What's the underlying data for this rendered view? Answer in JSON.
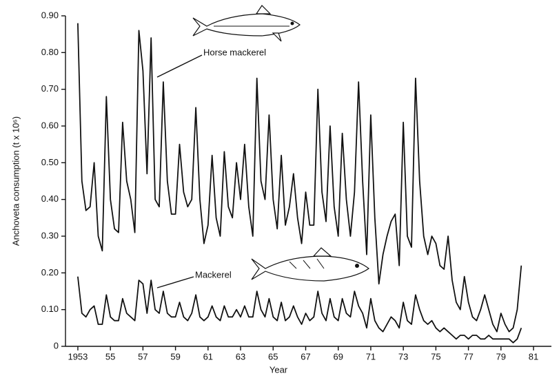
{
  "chart_data": {
    "type": "line",
    "xlabel": "Year",
    "ylabel": "Anchoveta consumption (t x 10⁶)",
    "annotations": [
      "Horse mackerel",
      "Mackerel"
    ],
    "x": [
      1953,
      1953.25,
      1953.5,
      1953.75,
      1954,
      1954.25,
      1954.5,
      1954.75,
      1955,
      1955.25,
      1955.5,
      1955.75,
      1956,
      1956.25,
      1956.5,
      1956.75,
      1957,
      1957.25,
      1957.5,
      1957.75,
      1958,
      1958.25,
      1958.5,
      1958.75,
      1959,
      1959.25,
      1959.5,
      1959.75,
      1960,
      1960.25,
      1960.5,
      1960.75,
      1961,
      1961.25,
      1961.5,
      1961.75,
      1962,
      1962.25,
      1962.5,
      1962.75,
      1963,
      1963.25,
      1963.5,
      1963.75,
      1964,
      1964.25,
      1964.5,
      1964.75,
      1965,
      1965.25,
      1965.5,
      1965.75,
      1966,
      1966.25,
      1966.5,
      1966.75,
      1967,
      1967.25,
      1967.5,
      1967.75,
      1968,
      1968.25,
      1968.5,
      1968.75,
      1969,
      1969.25,
      1969.5,
      1969.75,
      1970,
      1970.25,
      1970.5,
      1970.75,
      1971,
      1971.25,
      1971.5,
      1971.75,
      1972,
      1972.25,
      1972.5,
      1972.75,
      1973,
      1973.25,
      1973.5,
      1973.75,
      1974,
      1974.25,
      1974.5,
      1974.75,
      1975,
      1975.25,
      1975.5,
      1975.75,
      1976,
      1976.25,
      1976.5,
      1976.75,
      1977,
      1977.25,
      1977.5,
      1977.75,
      1978,
      1978.25,
      1978.5,
      1978.75,
      1979,
      1979.25,
      1979.5,
      1979.75,
      1980,
      1980.25
    ],
    "series": [
      {
        "name": "Horse mackerel",
        "color": "#111111",
        "values": [
          0.88,
          0.45,
          0.37,
          0.38,
          0.5,
          0.3,
          0.26,
          0.68,
          0.4,
          0.32,
          0.31,
          0.61,
          0.45,
          0.4,
          0.31,
          0.86,
          0.75,
          0.47,
          0.84,
          0.4,
          0.38,
          0.72,
          0.45,
          0.36,
          0.36,
          0.55,
          0.42,
          0.38,
          0.4,
          0.65,
          0.4,
          0.28,
          0.33,
          0.52,
          0.35,
          0.3,
          0.53,
          0.38,
          0.35,
          0.5,
          0.4,
          0.55,
          0.38,
          0.3,
          0.73,
          0.45,
          0.4,
          0.63,
          0.4,
          0.32,
          0.52,
          0.33,
          0.38,
          0.47,
          0.35,
          0.28,
          0.42,
          0.33,
          0.33,
          0.7,
          0.42,
          0.34,
          0.6,
          0.38,
          0.3,
          0.58,
          0.4,
          0.3,
          0.42,
          0.72,
          0.45,
          0.25,
          0.63,
          0.35,
          0.17,
          0.25,
          0.3,
          0.34,
          0.36,
          0.22,
          0.61,
          0.3,
          0.27,
          0.73,
          0.45,
          0.3,
          0.25,
          0.3,
          0.28,
          0.22,
          0.21,
          0.3,
          0.18,
          0.12,
          0.1,
          0.19,
          0.12,
          0.08,
          0.07,
          0.1,
          0.14,
          0.1,
          0.06,
          0.04,
          0.09,
          0.06,
          0.04,
          0.05,
          0.1,
          0.22
        ]
      },
      {
        "name": "Mackerel",
        "color": "#111111",
        "values": [
          0.19,
          0.09,
          0.08,
          0.1,
          0.11,
          0.06,
          0.06,
          0.14,
          0.08,
          0.07,
          0.07,
          0.13,
          0.09,
          0.08,
          0.07,
          0.18,
          0.17,
          0.09,
          0.18,
          0.1,
          0.09,
          0.15,
          0.09,
          0.08,
          0.08,
          0.12,
          0.08,
          0.07,
          0.09,
          0.14,
          0.08,
          0.07,
          0.08,
          0.11,
          0.08,
          0.07,
          0.11,
          0.08,
          0.08,
          0.1,
          0.08,
          0.11,
          0.08,
          0.08,
          0.15,
          0.1,
          0.08,
          0.13,
          0.08,
          0.07,
          0.12,
          0.07,
          0.08,
          0.11,
          0.08,
          0.06,
          0.09,
          0.07,
          0.08,
          0.15,
          0.09,
          0.07,
          0.13,
          0.08,
          0.07,
          0.13,
          0.09,
          0.08,
          0.15,
          0.11,
          0.09,
          0.05,
          0.13,
          0.07,
          0.05,
          0.04,
          0.06,
          0.08,
          0.07,
          0.05,
          0.12,
          0.07,
          0.06,
          0.14,
          0.1,
          0.07,
          0.06,
          0.07,
          0.05,
          0.04,
          0.05,
          0.04,
          0.03,
          0.02,
          0.03,
          0.03,
          0.02,
          0.03,
          0.03,
          0.02,
          0.02,
          0.03,
          0.02,
          0.02,
          0.02,
          0.02,
          0.02,
          0.01,
          0.02,
          0.05
        ]
      }
    ],
    "xlim": [
      1952.24,
      1982.1
    ],
    "xticks": [
      {
        "value": 1953,
        "label": "1953"
      },
      {
        "value": 1955,
        "label": "55"
      },
      {
        "value": 1957,
        "label": "57"
      },
      {
        "value": 1959,
        "label": "59"
      },
      {
        "value": 1961,
        "label": "61"
      },
      {
        "value": 1963,
        "label": "63"
      },
      {
        "value": 1965,
        "label": "65"
      },
      {
        "value": 1967,
        "label": "67"
      },
      {
        "value": 1969,
        "label": "69"
      },
      {
        "value": 1971,
        "label": "71"
      },
      {
        "value": 1973,
        "label": "73"
      },
      {
        "value": 1975,
        "label": "75"
      },
      {
        "value": 1977,
        "label": "77"
      },
      {
        "value": 1979,
        "label": "79"
      },
      {
        "value": 1981,
        "label": "81"
      }
    ],
    "ylim": [
      0,
      0.9
    ],
    "yticks": [
      0,
      {
        "value": 0.1,
        "label": "0.10"
      },
      {
        "value": 0.2,
        "label": "0.20"
      },
      {
        "value": 0.3,
        "label": "0.30"
      },
      {
        "value": 0.4,
        "label": "0.40"
      },
      {
        "value": 0.5,
        "label": "0.50"
      },
      {
        "value": 0.6,
        "label": "0.60"
      },
      {
        "value": 0.7,
        "label": "0.70"
      },
      {
        "value": 0.8,
        "label": "0.80"
      },
      {
        "value": 0.9,
        "label": "0.90"
      }
    ],
    "grid": false
  }
}
